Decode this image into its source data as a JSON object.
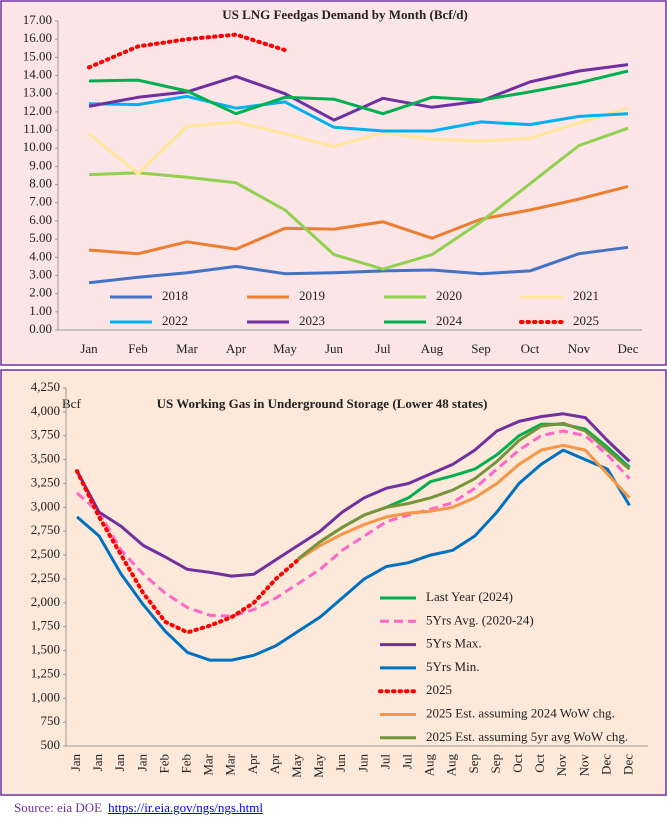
{
  "chart_data": [
    {
      "type": "line",
      "title": "US LNG Feedgas Demand by Month (Bcf/d)",
      "categories": [
        "Jan",
        "Feb",
        "Mar",
        "Apr",
        "May",
        "Jun",
        "Jul",
        "Aug",
        "Sep",
        "Oct",
        "Nov",
        "Dec"
      ],
      "ylim": [
        0,
        17
      ],
      "yticks": [
        {
          "value": 0,
          "label": "0.00"
        },
        {
          "value": 1,
          "label": "1.00"
        },
        {
          "value": 2,
          "label": "2.00"
        },
        {
          "value": 3,
          "label": "3.00"
        },
        {
          "value": 4,
          "label": "4.00"
        },
        {
          "value": 5,
          "label": "5.00"
        },
        {
          "value": 6,
          "label": "6.00"
        },
        {
          "value": 7,
          "label": "7.00"
        },
        {
          "value": 8,
          "label": "8.00"
        },
        {
          "value": 9,
          "label": "9.00"
        },
        {
          "value": 10,
          "label": "10.00"
        },
        {
          "value": 11,
          "label": "11.00"
        },
        {
          "value": 12,
          "label": "12.00"
        },
        {
          "value": 13,
          "label": "13.00"
        },
        {
          "value": 14,
          "label": "14.00"
        },
        {
          "value": 15,
          "label": "15.00"
        },
        {
          "value": 16,
          "label": "16.00"
        },
        {
          "value": 17,
          "label": "17.00"
        }
      ],
      "grid": false,
      "legend": "bottom",
      "series": [
        {
          "name": "2018",
          "color": "#4472c4",
          "style": "solid",
          "values": [
            2.6,
            2.9,
            3.15,
            3.5,
            3.1,
            3.15,
            3.25,
            3.3,
            3.1,
            3.25,
            4.2,
            4.55
          ]
        },
        {
          "name": "2019",
          "color": "#ed7d31",
          "style": "solid",
          "values": [
            4.4,
            4.2,
            4.85,
            4.45,
            5.6,
            5.55,
            5.95,
            5.05,
            6.1,
            6.6,
            7.2,
            7.9
          ]
        },
        {
          "name": "2020",
          "color": "#92d050",
          "style": "solid",
          "values": [
            8.55,
            8.65,
            8.4,
            8.1,
            6.6,
            4.15,
            3.35,
            4.15,
            5.95,
            8.05,
            10.15,
            11.1
          ]
        },
        {
          "name": "2021",
          "color": "#ffe699",
          "style": "solid",
          "values": [
            10.8,
            8.6,
            11.2,
            11.45,
            10.8,
            10.1,
            10.85,
            10.5,
            10.4,
            10.55,
            11.4,
            12.2
          ]
        },
        {
          "name": "2022",
          "color": "#00b0f0",
          "style": "solid",
          "values": [
            12.45,
            12.4,
            12.85,
            12.2,
            12.55,
            11.15,
            10.95,
            10.95,
            11.45,
            11.3,
            11.75,
            11.9
          ]
        },
        {
          "name": "2023",
          "color": "#7030a0",
          "style": "solid",
          "values": [
            12.3,
            12.8,
            13.1,
            13.95,
            13.0,
            11.55,
            12.75,
            12.25,
            12.6,
            13.65,
            14.25,
            14.6
          ]
        },
        {
          "name": "2024",
          "color": "#00b050",
          "style": "solid",
          "values": [
            13.7,
            13.75,
            13.15,
            11.9,
            12.8,
            12.7,
            11.9,
            12.8,
            12.65,
            13.1,
            13.6,
            14.25
          ]
        },
        {
          "name": "2025",
          "color": "#ff0000",
          "style": "dotted",
          "values": [
            14.45,
            15.6,
            16.0,
            16.25,
            15.4,
            null,
            null,
            null,
            null,
            null,
            null,
            null
          ]
        }
      ]
    },
    {
      "type": "line",
      "title": "US Working Gas in Underground Storage (Lower 48 states)",
      "y_label": "Bcf",
      "categories": [
        "Jan",
        "Jan",
        "Jan",
        "Jan",
        "Feb",
        "Feb",
        "Mar",
        "Mar",
        "Apr",
        "Apr",
        "May",
        "May",
        "Jun",
        "Jun",
        "Jul",
        "Jul",
        "Aug",
        "Aug",
        "Sep",
        "Sep",
        "Oct",
        "Oct",
        "Nov",
        "Nov",
        "Dec",
        "Dec"
      ],
      "ylim": [
        500,
        4250
      ],
      "yticks": [
        500,
        750,
        {
          "value": 1000,
          "label": "1,000"
        },
        {
          "value": 1250,
          "label": "1,250"
        },
        {
          "value": 1500,
          "label": "1,500"
        },
        {
          "value": 1750,
          "label": "1,750"
        },
        {
          "value": 2000,
          "label": "2,000"
        },
        {
          "value": 2250,
          "label": "2,250"
        },
        {
          "value": 2500,
          "label": "2,500"
        },
        {
          "value": 2750,
          "label": "2,750"
        },
        {
          "value": 3000,
          "label": "3,000"
        },
        {
          "value": 3250,
          "label": "3,250"
        },
        {
          "value": 3500,
          "label": "3,500"
        },
        {
          "value": 3750,
          "label": "3,750"
        },
        {
          "value": 4000,
          "label": "4,000"
        },
        {
          "value": 4250,
          "label": "4,250"
        }
      ],
      "grid": false,
      "legend": "bottom-right",
      "series": [
        {
          "name": "Last Year (2024)",
          "color": "#00b050",
          "style": "solid",
          "values": [
            null,
            null,
            null,
            null,
            null,
            null,
            null,
            null,
            null,
            null,
            null,
            2640,
            2790,
            2920,
            3000,
            3100,
            3270,
            3330,
            3400,
            3550,
            3750,
            3870,
            3870,
            3820,
            3630,
            3420
          ]
        },
        {
          "name": "5Yrs Avg. (2020-24)",
          "color": "#ff66cc",
          "style": "dashed",
          "values": [
            3150,
            2950,
            2550,
            2300,
            2100,
            1950,
            1870,
            1860,
            1930,
            2050,
            2200,
            2350,
            2550,
            2700,
            2850,
            2920,
            2980,
            3050,
            3200,
            3400,
            3600,
            3750,
            3800,
            3750,
            3550,
            3300
          ]
        },
        {
          "name": "5Yrs Max.",
          "color": "#7030a0",
          "style": "solid",
          "values": [
            3380,
            2950,
            2800,
            2600,
            2480,
            2350,
            2320,
            2280,
            2300,
            2450,
            2600,
            2750,
            2950,
            3100,
            3200,
            3250,
            3350,
            3450,
            3600,
            3800,
            3900,
            3950,
            3980,
            3940,
            3700,
            3480
          ]
        },
        {
          "name": "5Yrs Min.",
          "color": "#0070c0",
          "style": "solid",
          "values": [
            2900,
            2700,
            2300,
            1980,
            1700,
            1480,
            1400,
            1400,
            1450,
            1550,
            1700,
            1850,
            2050,
            2250,
            2380,
            2420,
            2500,
            2550,
            2700,
            2950,
            3250,
            3450,
            3600,
            3500,
            3400,
            3020
          ]
        },
        {
          "name": "2025",
          "color": "#ff0000",
          "style": "dotted",
          "values": [
            3380,
            2900,
            2500,
            2100,
            1800,
            1690,
            1760,
            1850,
            2000,
            2250,
            2450,
            null,
            null,
            null,
            null,
            null,
            null,
            null,
            null,
            null,
            null,
            null,
            null,
            null,
            null,
            null
          ]
        },
        {
          "name": "2025 Est. assuming 2024 WoW chg.",
          "color": "#f79646",
          "style": "solid",
          "values": [
            null,
            null,
            null,
            null,
            null,
            null,
            null,
            null,
            null,
            null,
            2450,
            2600,
            2720,
            2820,
            2900,
            2940,
            2960,
            3000,
            3100,
            3250,
            3450,
            3600,
            3650,
            3600,
            3350,
            3100
          ]
        },
        {
          "name": "2025 Est. assuming 5yr avg WoW chg.",
          "color": "#77933c",
          "style": "solid",
          "values": [
            null,
            null,
            null,
            null,
            null,
            null,
            null,
            null,
            null,
            null,
            2460,
            2640,
            2790,
            2920,
            3000,
            3040,
            3100,
            3180,
            3300,
            3480,
            3700,
            3850,
            3880,
            3800,
            3600,
            3400
          ]
        }
      ]
    }
  ],
  "source": {
    "text": "Source: eia DOE",
    "link": "https://ir.eia.gov/ngs/ngs.html"
  }
}
